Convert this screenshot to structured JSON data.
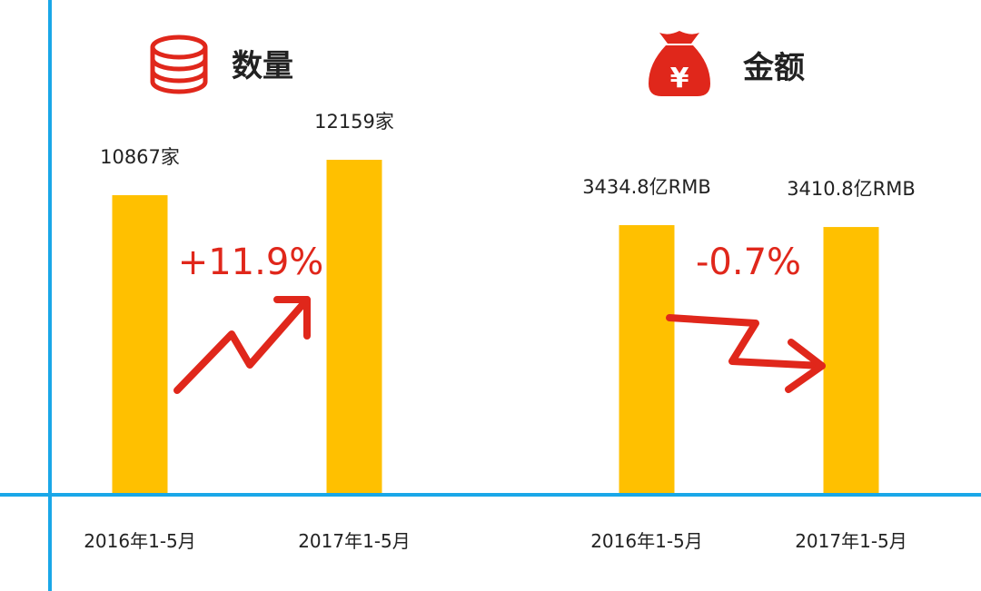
{
  "colors": {
    "bar": "#FFC000",
    "axis": "#1AA7E8",
    "accent": "#E0271B",
    "text": "#222222"
  },
  "icons": {
    "left": "database-stack-icon",
    "right": "money-bag-icon"
  },
  "chart_data": [
    {
      "type": "bar",
      "title": "数量",
      "categories": [
        "2016年1-5月",
        "2017年1-5月"
      ],
      "values": [
        10867,
        12159
      ],
      "value_labels": [
        "10867家",
        "12159家"
      ],
      "change": "+11.9%",
      "trend": "up",
      "ylim": [
        0,
        13000
      ]
    },
    {
      "type": "bar",
      "title": "金额",
      "categories": [
        "2016年1-5月",
        "2017年1-5月"
      ],
      "values": [
        3434.8,
        3410.8
      ],
      "value_labels": [
        "3434.8亿RMB",
        "3410.8亿RMB"
      ],
      "change": "-0.7%",
      "trend": "down",
      "ylim": [
        0,
        4000
      ]
    }
  ]
}
